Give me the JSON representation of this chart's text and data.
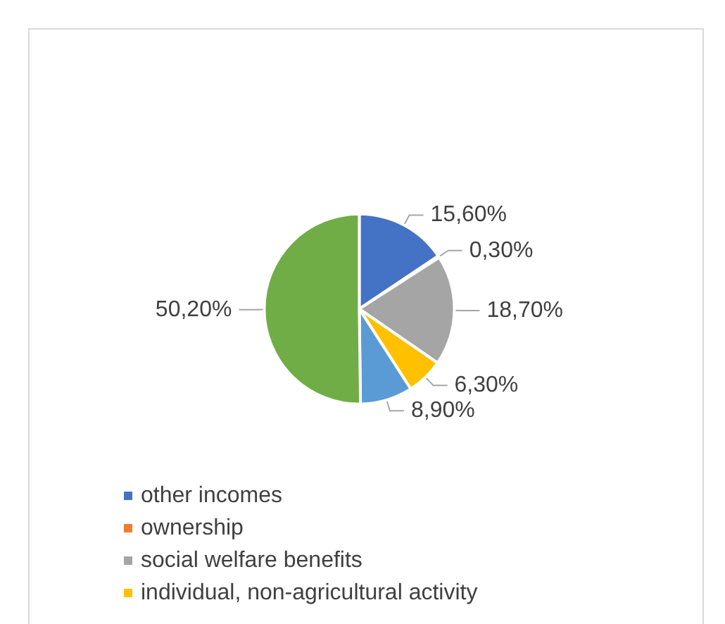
{
  "chart_data": {
    "type": "pie",
    "categories": [
      "other incomes",
      "ownership",
      "social welfare benefits",
      "individual, non-agricultural activity",
      null,
      null
    ],
    "values": [
      15.6,
      0.3,
      18.7,
      6.3,
      8.9,
      50.2
    ],
    "colors": [
      "#4472c4",
      "#ed7d31",
      "#a5a5a5",
      "#ffc000",
      "#5b9bd5",
      "#70ad47"
    ],
    "value_labels": [
      "15,60%",
      "0,30%",
      "18,70%",
      "6,30%",
      "8,90%",
      "50,20%"
    ],
    "legend": "bottom"
  }
}
